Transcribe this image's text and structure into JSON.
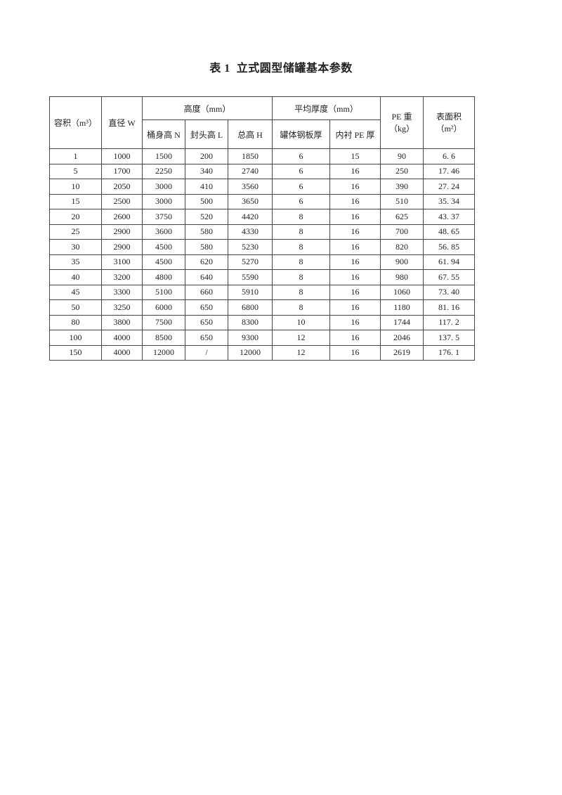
{
  "page": {
    "title": "表 1  立式圆型储罐基本参数"
  },
  "table": {
    "header": {
      "volume": "容积（m³）",
      "diameter": "直径 W",
      "height_group": "高度（mm）",
      "body_height": "桶身高 N",
      "head_height": "封头高 L",
      "total_height": "总高 H",
      "thickness_group": "平均厚度（mm）",
      "steel_thickness": "罐体钢板厚",
      "pe_lining_thickness": "内衬 PE 厚",
      "pe_weight": "PE 重\n（kg）",
      "surface_area": "表面积\n（m²）"
    },
    "rows": [
      [
        "1",
        "1000",
        "1500",
        "200",
        "1850",
        "6",
        "15",
        "90",
        "6. 6"
      ],
      [
        "5",
        "1700",
        "2250",
        "340",
        "2740",
        "6",
        "16",
        "250",
        "17. 46"
      ],
      [
        "10",
        "2050",
        "3000",
        "410",
        "3560",
        "6",
        "16",
        "390",
        "27. 24"
      ],
      [
        "15",
        "2500",
        "3000",
        "500",
        "3650",
        "6",
        "16",
        "510",
        "35. 34"
      ],
      [
        "20",
        "2600",
        "3750",
        "520",
        "4420",
        "8",
        "16",
        "625",
        "43. 37"
      ],
      [
        "25",
        "2900",
        "3600",
        "580",
        "4330",
        "8",
        "16",
        "700",
        "48. 65"
      ],
      [
        "30",
        "2900",
        "4500",
        "580",
        "5230",
        "8",
        "16",
        "820",
        "56. 85"
      ],
      [
        "35",
        "3100",
        "4500",
        "620",
        "5270",
        "8",
        "16",
        "900",
        "61. 94"
      ],
      [
        "40",
        "3200",
        "4800",
        "640",
        "5590",
        "8",
        "16",
        "980",
        "67. 55"
      ],
      [
        "45",
        "3300",
        "5100",
        "660",
        "5910",
        "8",
        "16",
        "1060",
        "73. 40"
      ],
      [
        "50",
        "3250",
        "6000",
        "650",
        "6800",
        "8",
        "16",
        "1180",
        "81. 16"
      ],
      [
        "80",
        "3800",
        "7500",
        "650",
        "8300",
        "10",
        "16",
        "1744",
        "117. 2"
      ],
      [
        "100",
        "4000",
        "8500",
        "650",
        "9300",
        "12",
        "16",
        "2046",
        "137. 5"
      ],
      [
        "150",
        "4000",
        "12000",
        "/",
        "12000",
        "12",
        "16",
        "2619",
        "176. 1"
      ]
    ]
  }
}
